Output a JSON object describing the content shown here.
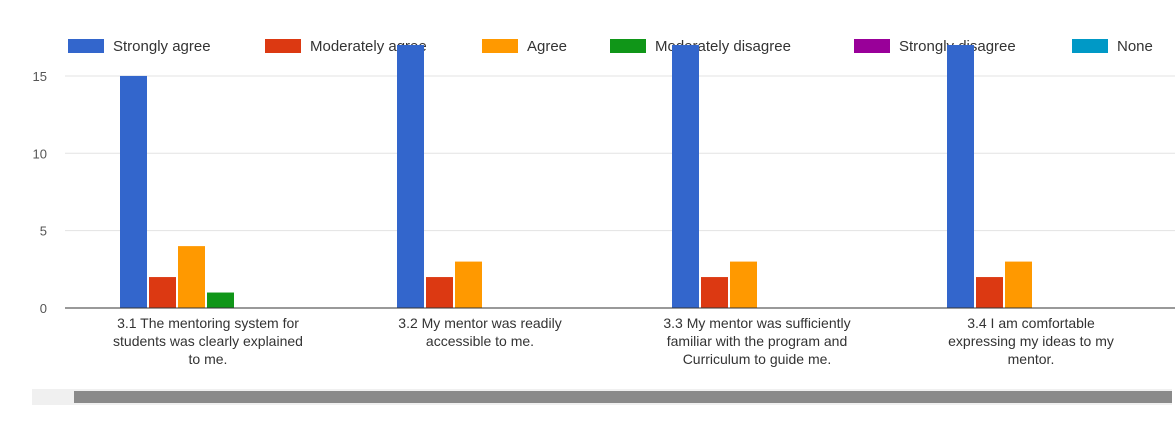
{
  "chart_data": {
    "type": "bar",
    "categories": [
      [
        "3.1 The mentoring system for",
        "students was clearly explained",
        "to me."
      ],
      [
        "3.2 My mentor was readily",
        "accessible to me."
      ],
      [
        "3.3 My mentor was sufficiently",
        "familiar with the program and",
        "Curriculum to guide me."
      ],
      [
        "3.4 I am comfortable",
        "expressing my ideas to my",
        "mentor."
      ]
    ],
    "series": [
      {
        "name": "Strongly agree",
        "color": "#3366cc",
        "values": [
          15,
          17,
          17,
          17
        ]
      },
      {
        "name": "Moderately agree",
        "color": "#dc3912",
        "values": [
          2,
          2,
          2,
          2
        ]
      },
      {
        "name": "Agree",
        "color": "#ff9900",
        "values": [
          4,
          3,
          3,
          3
        ]
      },
      {
        "name": "Moderately disagree",
        "color": "#109618",
        "values": [
          1,
          0,
          0,
          0
        ]
      },
      {
        "name": "Strongly disagree",
        "color": "#990099",
        "values": [
          0,
          0,
          0,
          0
        ]
      },
      {
        "name": "None",
        "color": "#0099c6",
        "values": [
          0,
          0,
          0,
          0
        ]
      }
    ],
    "yticks": [
      0,
      5,
      10,
      15
    ],
    "ylim": [
      0,
      17
    ],
    "grid": true,
    "legend_position": "top"
  }
}
